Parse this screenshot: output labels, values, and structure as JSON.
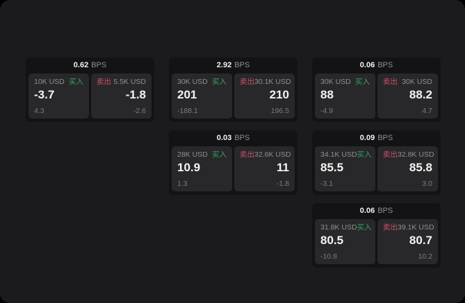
{
  "labels": {
    "bps_unit": "BPS",
    "buy": "买入",
    "sell": "卖出"
  },
  "colors": {
    "page_bg": "#1b1b1d",
    "card_bg": "#131315",
    "panel_bg": "#28282a",
    "buy_green": "#35a35d",
    "sell_red": "#c7516b",
    "value_text": "#f4f4f4",
    "label_text": "#909095"
  },
  "cards": [
    {
      "bps": "0.62",
      "col": 1,
      "row": 1,
      "buy": {
        "amount": "10K USD",
        "value": "-3.7",
        "sub": "4.3"
      },
      "sell": {
        "amount": "5.5K USD",
        "value": "-1.8",
        "sub": "-2.6"
      }
    },
    {
      "bps": "2.92",
      "col": 2,
      "row": 1,
      "buy": {
        "amount": "30K USD",
        "value": "201",
        "sub": "-188.1"
      },
      "sell": {
        "amount": "30.1K USD",
        "value": "210",
        "sub": "196.5"
      }
    },
    {
      "bps": "0.06",
      "col": 3,
      "row": 1,
      "buy": {
        "amount": "30K USD",
        "value": "88",
        "sub": "-4.9"
      },
      "sell": {
        "amount": "30K USD",
        "value": "88.2",
        "sub": "4.7"
      }
    },
    {
      "bps": "0.03",
      "col": 2,
      "row": 2,
      "buy": {
        "amount": "28K USD",
        "value": "10.9",
        "sub": "1.3"
      },
      "sell": {
        "amount": "32.6K USD",
        "value": "11",
        "sub": "-1.8"
      }
    },
    {
      "bps": "0.09",
      "col": 3,
      "row": 2,
      "buy": {
        "amount": "34.1K USD",
        "value": "85.5",
        "sub": "-3.1"
      },
      "sell": {
        "amount": "32.8K USD",
        "value": "85.8",
        "sub": "3.0"
      }
    },
    {
      "bps": "0.06",
      "col": 3,
      "row": 3,
      "buy": {
        "amount": "31.8K USD",
        "value": "80.5",
        "sub": "-10.8"
      },
      "sell": {
        "amount": "39.1K USD",
        "value": "80.7",
        "sub": "10.2"
      }
    }
  ]
}
